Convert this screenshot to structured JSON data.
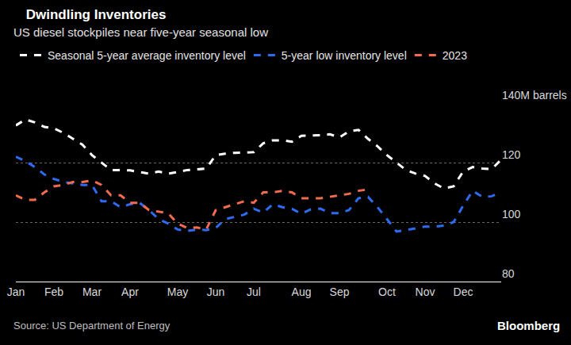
{
  "chart_data": {
    "type": "line",
    "title": "Dwindling Inventories",
    "subtitle": "US diesel stockpiles near five-year seasonal low",
    "source": "Source: US Department of Energy",
    "brand": "Bloomberg",
    "categories": [
      "Jan",
      null,
      null,
      null,
      "Feb",
      null,
      null,
      null,
      "Mar",
      null,
      null,
      null,
      "Apr",
      null,
      null,
      null,
      null,
      "May",
      null,
      null,
      null,
      "Jun",
      null,
      null,
      null,
      "Jul",
      null,
      null,
      null,
      null,
      "Aug",
      null,
      null,
      null,
      "Sep",
      null,
      null,
      null,
      null,
      "Oct",
      null,
      null,
      null,
      "Nov",
      null,
      null,
      null,
      "Dec",
      null,
      null,
      null,
      null
    ],
    "series": [
      {
        "name": "Seasonal 5-year average inventory level",
        "color": "#ffffff",
        "line_style": "dashed",
        "values": [
          132.5,
          134.5,
          133.5,
          132,
          131.5,
          130,
          128,
          126,
          122.5,
          120,
          117.5,
          117.5,
          117.4,
          116.8,
          116.3,
          117,
          116.3,
          116.8,
          117.5,
          117.7,
          118,
          122.5,
          123,
          123.3,
          123.5,
          123.5,
          126.5,
          127.5,
          127.5,
          127,
          129,
          129,
          129.2,
          129.5,
          128.5,
          130.5,
          131,
          128,
          125.5,
          122.5,
          120,
          117.5,
          116.3,
          115.5,
          113,
          111.3,
          112,
          117,
          118.5,
          118,
          117.8,
          121
        ]
      },
      {
        "name": "5-year low inventory level",
        "color": "#2f6bf0",
        "line_style": "dashed",
        "values": [
          122,
          120.5,
          118.5,
          116,
          114.5,
          113.5,
          113,
          112.5,
          112.5,
          107,
          107,
          105,
          106,
          106.5,
          104,
          101,
          99.5,
          97.5,
          97,
          97.5,
          97.3,
          98,
          101,
          101.8,
          102.5,
          104.5,
          103.2,
          106,
          105,
          104.5,
          102.8,
          104.3,
          104.5,
          103,
          103,
          104,
          108,
          108.5,
          105,
          101,
          96.8,
          97.3,
          97.8,
          98.5,
          98.5,
          98.8,
          100,
          105.5,
          110.5,
          108.5,
          108.7,
          110
        ]
      },
      {
        "name": "2023",
        "color": "#f26b4f",
        "line_style": "dashed",
        "values": [
          109,
          107.5,
          107.5,
          110,
          112,
          112.5,
          113.5,
          113.5,
          114,
          112.5,
          109,
          109,
          106.5,
          106.5,
          104,
          103.5,
          103,
          99.5,
          98,
          98.2,
          97.5,
          104,
          105,
          106,
          107,
          106.5,
          110,
          110,
          110.5,
          110,
          108,
          108,
          108,
          108.5,
          109,
          109.5,
          110.5,
          111,
          null,
          null,
          null,
          null,
          null,
          null,
          null,
          null,
          null,
          null,
          null,
          null,
          null,
          null
        ]
      }
    ],
    "ylim": [
      80,
      140
    ],
    "yticks": [
      80,
      100,
      120,
      {
        "value": 140,
        "label": "140M barrels"
      }
    ],
    "grid": true,
    "legend": "top left"
  }
}
